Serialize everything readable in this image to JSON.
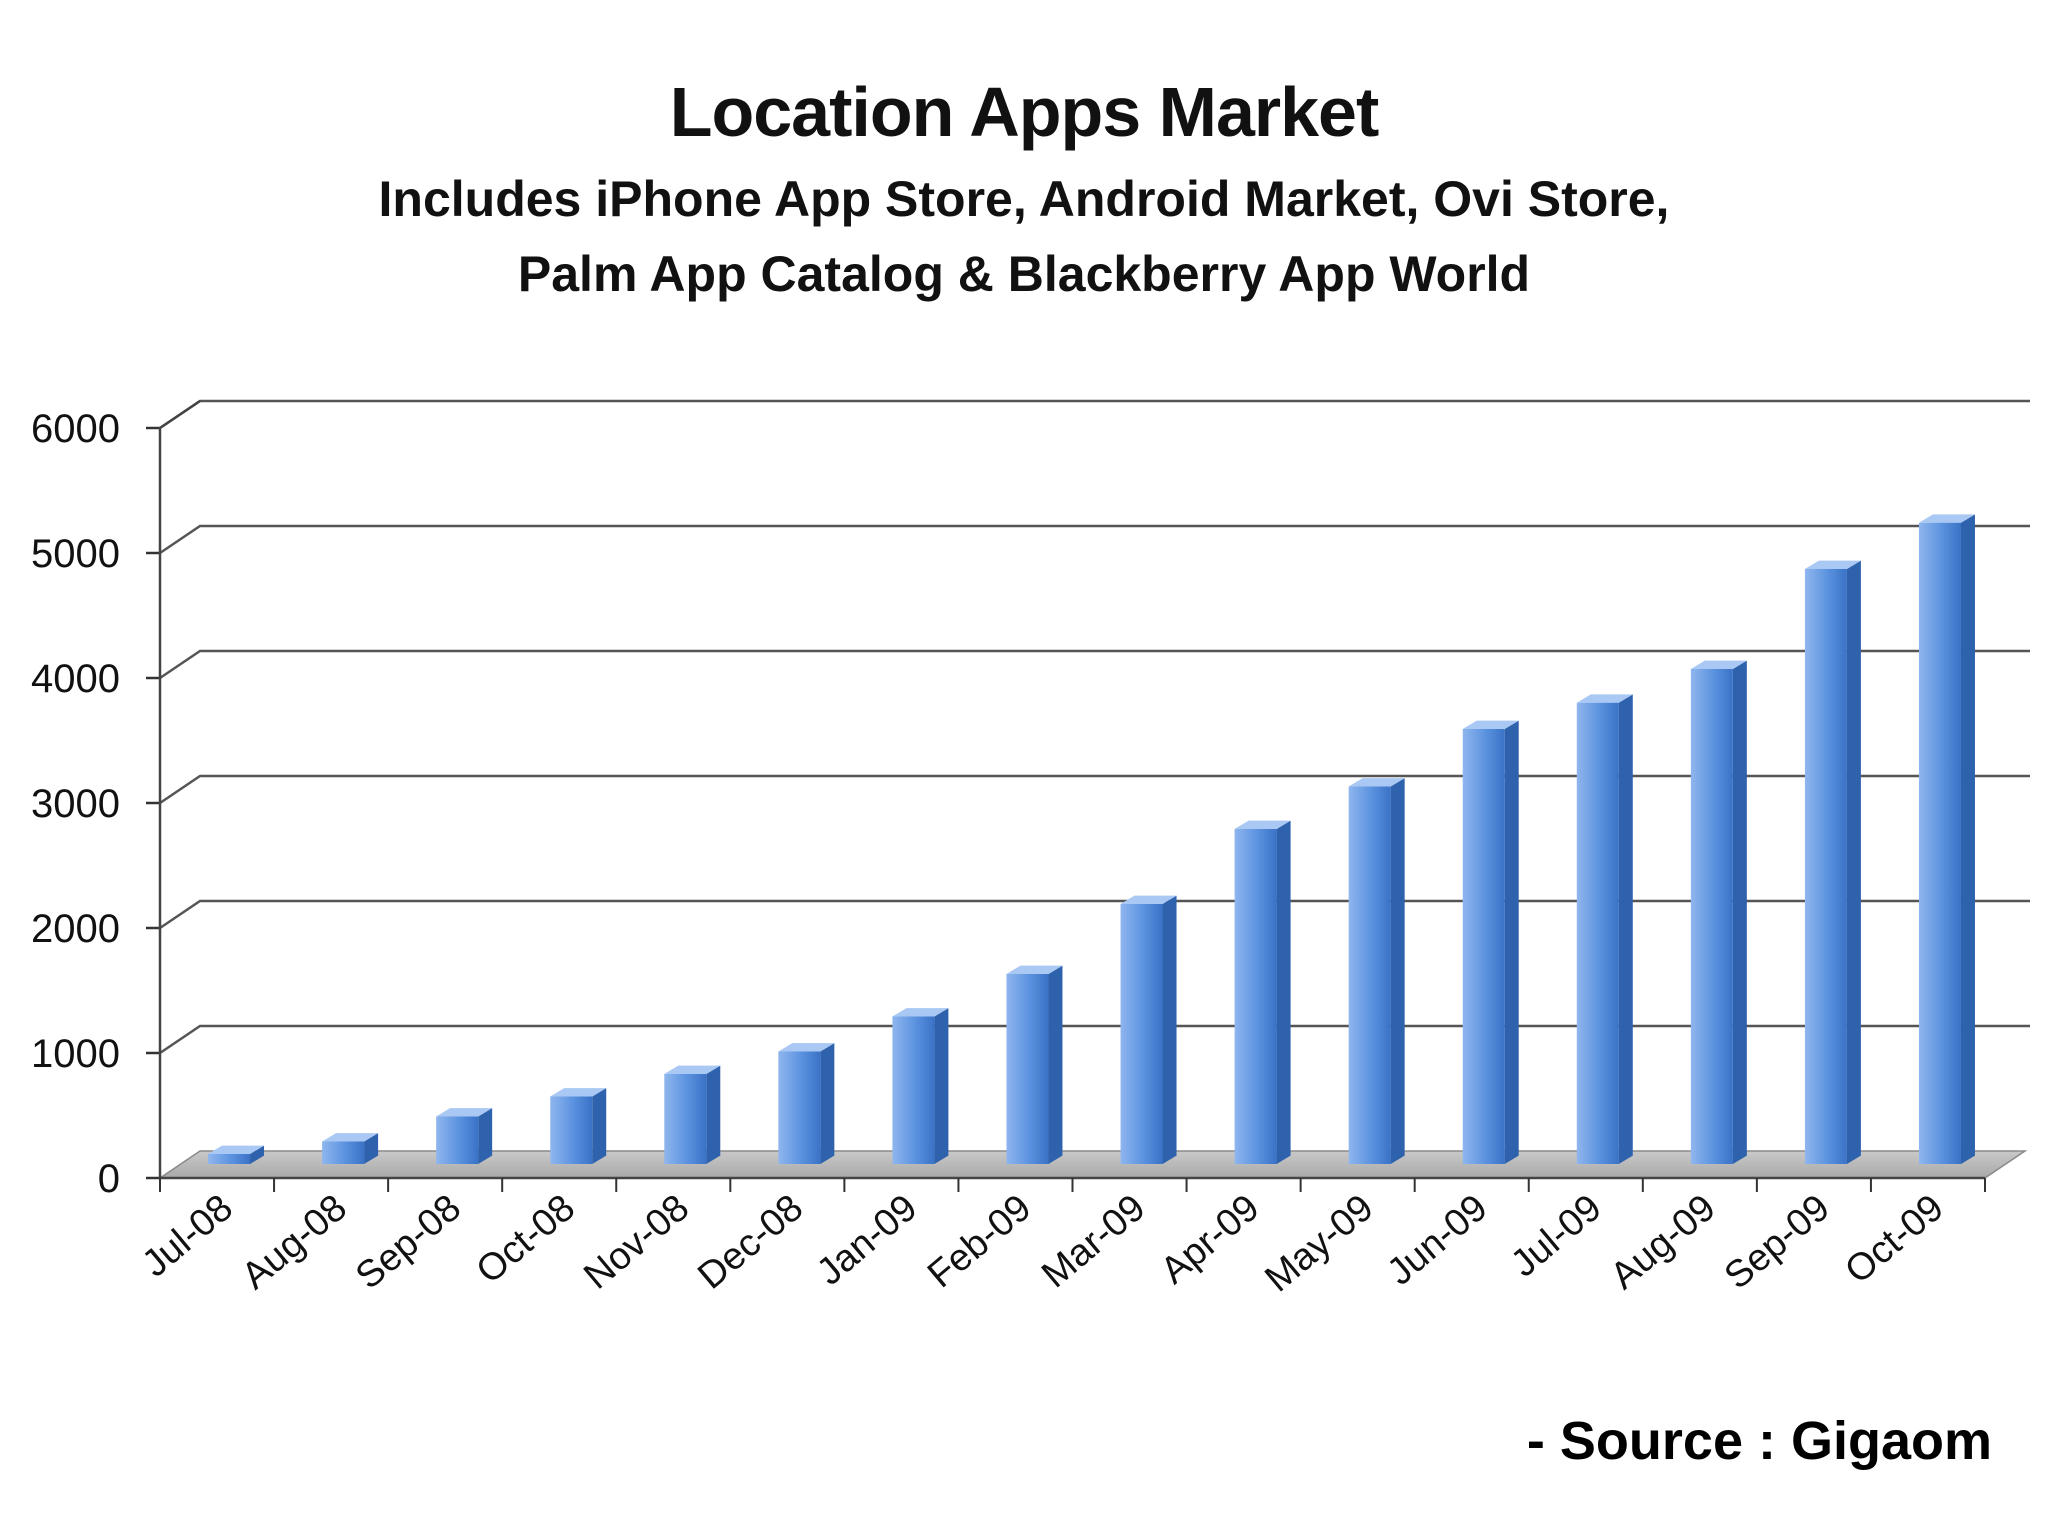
{
  "chart_data": {
    "type": "bar",
    "title": "Location Apps Market",
    "subtitle_lines": [
      "Includes iPhone App Store, Android Market, Ovi Store,",
      "Palm App Catalog & Blackberry App World"
    ],
    "categories": [
      "Jul-08",
      "Aug-08",
      "Sep-08",
      "Oct-08",
      "Nov-08",
      "Dec-08",
      "Jan-09",
      "Feb-09",
      "Mar-09",
      "Apr-09",
      "May-09",
      "Jun-09",
      "Jul-09",
      "Aug-09",
      "Sep-09",
      "Oct-09"
    ],
    "values": [
      80,
      180,
      380,
      540,
      720,
      900,
      1180,
      1520,
      2080,
      2680,
      3020,
      3480,
      3690,
      3960,
      4760,
      5130
    ],
    "yticks": [
      "0",
      "1000",
      "2000",
      "3000",
      "4000",
      "5000",
      "6000"
    ],
    "ylim": [
      0,
      6000
    ],
    "grid": true,
    "bar_color": "#4a86d8",
    "source": "- Source : Gigaom"
  }
}
